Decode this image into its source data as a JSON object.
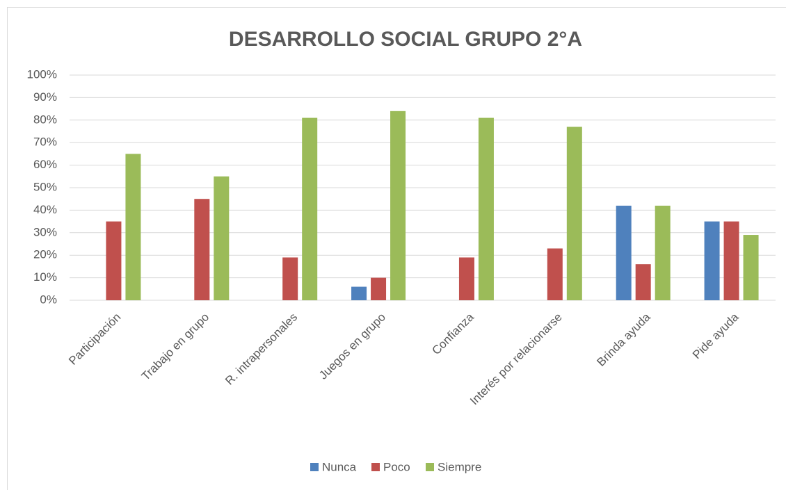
{
  "chart_data": {
    "type": "bar",
    "title": "DESARROLLO SOCIAL GRUPO 2°A",
    "categories": [
      "Participación",
      "Trabajo en grupo",
      "R. intrapersonales",
      "Juegos en grupo",
      "Confianza",
      "Interés por relacionarse",
      "Brinda ayuda",
      "Pide ayuda"
    ],
    "series": [
      {
        "name": "Nunca",
        "color": "#4f81bd",
        "values": [
          0,
          0,
          0,
          6,
          0,
          0,
          42,
          35
        ]
      },
      {
        "name": "Poco",
        "color": "#c0504d",
        "values": [
          35,
          45,
          19,
          10,
          19,
          23,
          16,
          35
        ]
      },
      {
        "name": "Siempre",
        "color": "#9bbb59",
        "values": [
          65,
          55,
          81,
          84,
          81,
          77,
          42,
          29
        ]
      }
    ],
    "ylim": [
      0,
      100
    ],
    "yticks": [
      {
        "value": 0,
        "label": "0%"
      },
      {
        "value": 10,
        "label": "10%"
      },
      {
        "value": 20,
        "label": "20%"
      },
      {
        "value": 30,
        "label": "30%"
      },
      {
        "value": 40,
        "label": "40%"
      },
      {
        "value": 50,
        "label": "50%"
      },
      {
        "value": 60,
        "label": "60%"
      },
      {
        "value": 70,
        "label": "70%"
      },
      {
        "value": 80,
        "label": "80%"
      },
      {
        "value": 90,
        "label": "90%"
      },
      {
        "value": 100,
        "label": "100%"
      }
    ],
    "grid": true,
    "legend": "bottom"
  }
}
